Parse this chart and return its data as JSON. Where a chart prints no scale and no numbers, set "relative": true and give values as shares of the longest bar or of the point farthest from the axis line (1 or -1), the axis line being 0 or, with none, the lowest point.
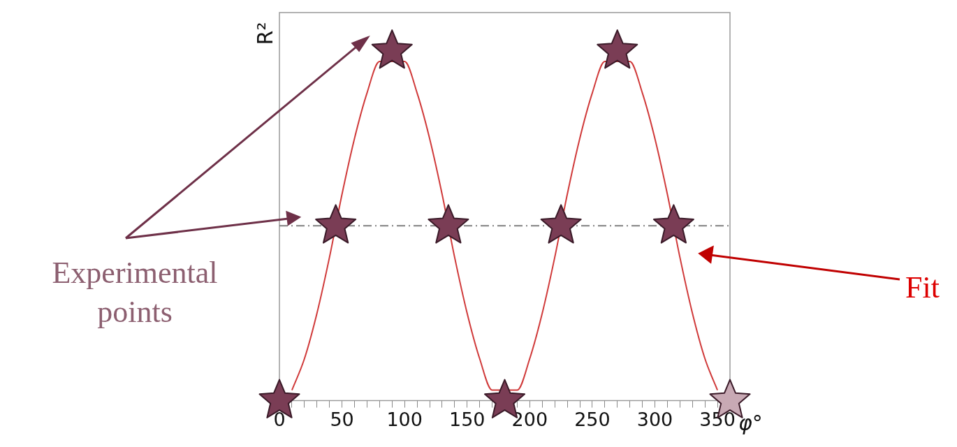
{
  "chart_data": {
    "type": "scatter",
    "relative": true,
    "xlabel": "φ°",
    "ylabel": "R²",
    "xlim": [
      0,
      360
    ],
    "xticks": [
      0,
      {
        "value": 10,
        "label": null
      },
      {
        "value": 20,
        "label": null
      },
      {
        "value": 30,
        "label": null
      },
      {
        "value": 40,
        "label": null
      },
      50,
      {
        "value": 60,
        "label": null
      },
      {
        "value": 70,
        "label": null
      },
      {
        "value": 80,
        "label": null
      },
      {
        "value": 90,
        "label": null
      },
      100,
      {
        "value": 110,
        "label": null
      },
      {
        "value": 120,
        "label": null
      },
      {
        "value": 130,
        "label": null
      },
      {
        "value": 140,
        "label": null
      },
      150,
      {
        "value": 160,
        "label": null
      },
      {
        "value": 170,
        "label": null
      },
      {
        "value": 180,
        "label": null
      },
      {
        "value": 190,
        "label": null
      },
      200,
      {
        "value": 210,
        "label": null
      },
      {
        "value": 220,
        "label": null
      },
      {
        "value": 230,
        "label": null
      },
      {
        "value": 240,
        "label": null
      },
      250,
      {
        "value": 260,
        "label": null
      },
      {
        "value": 270,
        "label": null
      },
      {
        "value": 280,
        "label": null
      },
      {
        "value": 290,
        "label": null
      },
      300,
      {
        "value": 310,
        "label": null
      },
      {
        "value": 320,
        "label": null
      },
      {
        "value": 330,
        "label": null
      },
      {
        "value": 340,
        "label": null
      },
      350,
      {
        "value": 360,
        "label": null
      }
    ],
    "grid": false,
    "legend": false,
    "series": [
      {
        "type": "line",
        "color": "#d03a3a",
        "marker": "none",
        "line_style": "solid",
        "x": [
          10,
          20,
          30,
          40,
          50,
          60,
          70,
          80,
          90,
          100,
          110,
          120,
          130,
          140,
          150,
          160,
          170,
          180,
          190,
          200,
          210,
          220,
          230,
          240,
          250,
          260,
          270,
          280,
          290,
          300,
          310,
          320,
          330,
          340,
          350
        ],
        "values": [
          0.03,
          0.12,
          0.25,
          0.41,
          0.59,
          0.75,
          0.88,
          0.97,
          null,
          0.97,
          0.88,
          0.75,
          0.59,
          0.41,
          0.25,
          0.12,
          0.03,
          null,
          0.03,
          0.12,
          0.25,
          0.41,
          0.59,
          0.75,
          0.88,
          0.97,
          null,
          0.97,
          0.88,
          0.75,
          0.59,
          0.41,
          0.25,
          0.12,
          0.03
        ]
      },
      {
        "marker": "star",
        "x": [
          0,
          45,
          90,
          135,
          180,
          225,
          270,
          315,
          360
        ],
        "values": [
          0,
          0.5,
          1,
          0.5,
          0,
          0.5,
          1,
          0.5,
          0
        ],
        "colors": [
          "#7a3d55",
          "#7a3d55",
          "#7a3d55",
          "#7a3d55",
          "#7a3d55",
          "#7a3d55",
          "#7a3d55",
          "#7a3d55",
          "#c8a9b4"
        ]
      }
    ],
    "ref_lines": [
      {
        "axis": "y",
        "value": 0.5,
        "color": "#808080",
        "line_style": "dashdot"
      }
    ],
    "annotations": [
      "Experimental points",
      "Fit"
    ]
  }
}
